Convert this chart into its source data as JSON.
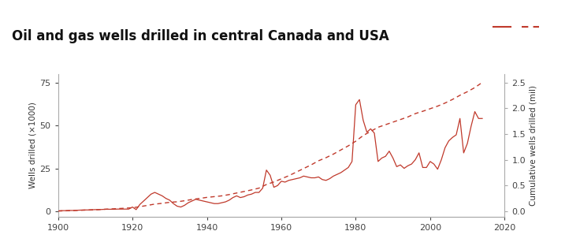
{
  "title": "Oil and gas wells drilled in central Canada and USA",
  "title_fontsize": 12,
  "ylabel_left": "Wells drilled (×1000)",
  "ylabel_right": "Cumulative wells drilled (mil)",
  "xlim": [
    1900,
    2020
  ],
  "ylim_left": [
    -3,
    80
  ],
  "ylim_right": [
    -0.1,
    2.667
  ],
  "line_color": "#c0392b",
  "background_color": "#ffffff",
  "header_color": "#1a1a1a",
  "yticks_left": [
    0,
    25,
    50,
    75
  ],
  "yticks_right": [
    0,
    0.5,
    1.0,
    1.5,
    2.0,
    2.5
  ],
  "xticks": [
    1900,
    1920,
    1940,
    1960,
    1980,
    2000,
    2020
  ],
  "annual_years": [
    1900,
    1901,
    1902,
    1903,
    1904,
    1905,
    1906,
    1907,
    1908,
    1909,
    1910,
    1911,
    1912,
    1913,
    1914,
    1915,
    1916,
    1917,
    1918,
    1919,
    1920,
    1921,
    1922,
    1923,
    1924,
    1925,
    1926,
    1927,
    1928,
    1929,
    1930,
    1931,
    1932,
    1933,
    1934,
    1935,
    1936,
    1937,
    1938,
    1939,
    1940,
    1941,
    1942,
    1943,
    1944,
    1945,
    1946,
    1947,
    1948,
    1949,
    1950,
    1951,
    1952,
    1953,
    1954,
    1955,
    1956,
    1957,
    1958,
    1959,
    1960,
    1961,
    1962,
    1963,
    1964,
    1965,
    1966,
    1967,
    1968,
    1969,
    1970,
    1971,
    1972,
    1973,
    1974,
    1975,
    1976,
    1977,
    1978,
    1979,
    1980,
    1981,
    1982,
    1983,
    1984,
    1985,
    1986,
    1987,
    1988,
    1989,
    1990,
    1991,
    1992,
    1993,
    1994,
    1995,
    1996,
    1997,
    1998,
    1999,
    2000,
    2001,
    2002,
    2003,
    2004,
    2005,
    2006,
    2007,
    2008,
    2009,
    2010,
    2011,
    2012,
    2013,
    2014
  ],
  "annual_values": [
    0.3,
    0.4,
    0.4,
    0.5,
    0.5,
    0.6,
    0.7,
    0.8,
    0.8,
    0.9,
    1.0,
    1.0,
    1.1,
    1.2,
    1.2,
    1.2,
    1.3,
    1.3,
    1.3,
    1.3,
    2.5,
    1.0,
    4.0,
    6.0,
    8.0,
    10.0,
    11.0,
    10.0,
    9.0,
    7.5,
    6.5,
    4.5,
    3.0,
    2.5,
    3.5,
    5.0,
    6.0,
    7.0,
    6.5,
    6.0,
    5.5,
    5.0,
    4.5,
    4.5,
    5.0,
    5.5,
    6.5,
    8.0,
    9.0,
    8.0,
    8.5,
    9.5,
    10.0,
    11.0,
    11.0,
    13.5,
    24.0,
    21.0,
    14.0,
    15.0,
    17.5,
    17.0,
    18.0,
    18.5,
    19.0,
    19.5,
    20.5,
    20.0,
    19.5,
    19.5,
    20.0,
    18.5,
    18.0,
    19.0,
    20.5,
    21.5,
    22.5,
    24.0,
    25.5,
    29.0,
    62.0,
    65.0,
    53.0,
    46.0,
    48.0,
    45.5,
    29.0,
    31.0,
    32.0,
    35.0,
    31.0,
    26.0,
    27.0,
    25.0,
    26.5,
    27.5,
    30.0,
    34.0,
    25.5,
    25.5,
    29.0,
    27.5,
    24.5,
    30.0,
    37.0,
    41.0,
    43.0,
    44.5,
    54.0,
    34.0,
    39.5,
    49.5,
    58.0,
    54.0,
    54.0
  ],
  "cumulative_years": [
    1900,
    1902,
    1904,
    1906,
    1908,
    1910,
    1912,
    1914,
    1916,
    1918,
    1920,
    1922,
    1924,
    1926,
    1928,
    1930,
    1932,
    1934,
    1936,
    1938,
    1940,
    1942,
    1944,
    1946,
    1948,
    1950,
    1952,
    1954,
    1956,
    1958,
    1960,
    1962,
    1964,
    1966,
    1968,
    1970,
    1972,
    1974,
    1976,
    1978,
    1980,
    1982,
    1984,
    1986,
    1988,
    1990,
    1992,
    1994,
    1996,
    1998,
    2000,
    2002,
    2004,
    2006,
    2008,
    2010,
    2012,
    2014
  ],
  "cumulative_values": [
    0.005,
    0.01,
    0.015,
    0.02,
    0.025,
    0.03,
    0.038,
    0.045,
    0.053,
    0.06,
    0.07,
    0.09,
    0.115,
    0.14,
    0.155,
    0.175,
    0.185,
    0.205,
    0.23,
    0.25,
    0.27,
    0.285,
    0.3,
    0.325,
    0.355,
    0.385,
    0.415,
    0.45,
    0.52,
    0.57,
    0.63,
    0.69,
    0.76,
    0.83,
    0.9,
    0.98,
    1.04,
    1.11,
    1.19,
    1.27,
    1.36,
    1.47,
    1.55,
    1.63,
    1.68,
    1.73,
    1.78,
    1.83,
    1.895,
    1.94,
    1.99,
    2.04,
    2.1,
    2.17,
    2.25,
    2.32,
    2.4,
    2.5
  ]
}
